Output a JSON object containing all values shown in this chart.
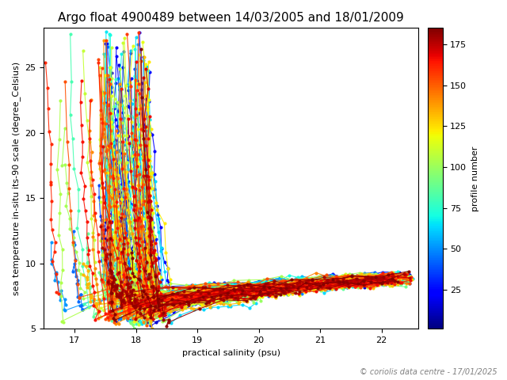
{
  "title": "Argo float 4900489 between 14/03/2005 and 18/01/2009",
  "xlabel": "practical salinity (psu)",
  "ylabel": "sea temperature in-situ its-90 scale (degree_Celsius)",
  "colorbar_label": "profile number",
  "copyright": "© coriolis data centre - 17/01/2025",
  "xlim": [
    16.5,
    22.6
  ],
  "ylim": [
    5.0,
    28.0
  ],
  "xticks": [
    17,
    18,
    19,
    20,
    21,
    22
  ],
  "yticks": [
    5,
    10,
    15,
    20,
    25
  ],
  "colorbar_ticks": [
    25,
    50,
    75,
    100,
    125,
    150,
    175
  ],
  "n_profiles": 185,
  "cmap": "jet",
  "figsize": [
    6.4,
    4.8
  ],
  "dpi": 100,
  "title_fontsize": 11,
  "label_fontsize": 8,
  "tick_fontsize": 8
}
